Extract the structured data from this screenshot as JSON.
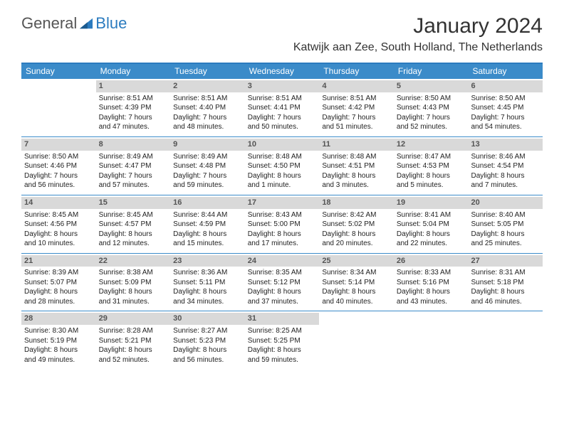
{
  "logo": {
    "text1": "General",
    "text2": "Blue"
  },
  "title": "January 2024",
  "location": "Katwijk aan Zee, South Holland, The Netherlands",
  "colors": {
    "header_bg": "#3b8bc9",
    "border": "#2b7bbf",
    "daynum_bg": "#d9d9d9",
    "text": "#222222"
  },
  "weekdays": [
    "Sunday",
    "Monday",
    "Tuesday",
    "Wednesday",
    "Thursday",
    "Friday",
    "Saturday"
  ],
  "weeks": [
    [
      {
        "num": "",
        "sunrise": "",
        "sunset": "",
        "daylight1": "",
        "daylight2": ""
      },
      {
        "num": "1",
        "sunrise": "Sunrise: 8:51 AM",
        "sunset": "Sunset: 4:39 PM",
        "daylight1": "Daylight: 7 hours",
        "daylight2": "and 47 minutes."
      },
      {
        "num": "2",
        "sunrise": "Sunrise: 8:51 AM",
        "sunset": "Sunset: 4:40 PM",
        "daylight1": "Daylight: 7 hours",
        "daylight2": "and 48 minutes."
      },
      {
        "num": "3",
        "sunrise": "Sunrise: 8:51 AM",
        "sunset": "Sunset: 4:41 PM",
        "daylight1": "Daylight: 7 hours",
        "daylight2": "and 50 minutes."
      },
      {
        "num": "4",
        "sunrise": "Sunrise: 8:51 AM",
        "sunset": "Sunset: 4:42 PM",
        "daylight1": "Daylight: 7 hours",
        "daylight2": "and 51 minutes."
      },
      {
        "num": "5",
        "sunrise": "Sunrise: 8:50 AM",
        "sunset": "Sunset: 4:43 PM",
        "daylight1": "Daylight: 7 hours",
        "daylight2": "and 52 minutes."
      },
      {
        "num": "6",
        "sunrise": "Sunrise: 8:50 AM",
        "sunset": "Sunset: 4:45 PM",
        "daylight1": "Daylight: 7 hours",
        "daylight2": "and 54 minutes."
      }
    ],
    [
      {
        "num": "7",
        "sunrise": "Sunrise: 8:50 AM",
        "sunset": "Sunset: 4:46 PM",
        "daylight1": "Daylight: 7 hours",
        "daylight2": "and 56 minutes."
      },
      {
        "num": "8",
        "sunrise": "Sunrise: 8:49 AM",
        "sunset": "Sunset: 4:47 PM",
        "daylight1": "Daylight: 7 hours",
        "daylight2": "and 57 minutes."
      },
      {
        "num": "9",
        "sunrise": "Sunrise: 8:49 AM",
        "sunset": "Sunset: 4:48 PM",
        "daylight1": "Daylight: 7 hours",
        "daylight2": "and 59 minutes."
      },
      {
        "num": "10",
        "sunrise": "Sunrise: 8:48 AM",
        "sunset": "Sunset: 4:50 PM",
        "daylight1": "Daylight: 8 hours",
        "daylight2": "and 1 minute."
      },
      {
        "num": "11",
        "sunrise": "Sunrise: 8:48 AM",
        "sunset": "Sunset: 4:51 PM",
        "daylight1": "Daylight: 8 hours",
        "daylight2": "and 3 minutes."
      },
      {
        "num": "12",
        "sunrise": "Sunrise: 8:47 AM",
        "sunset": "Sunset: 4:53 PM",
        "daylight1": "Daylight: 8 hours",
        "daylight2": "and 5 minutes."
      },
      {
        "num": "13",
        "sunrise": "Sunrise: 8:46 AM",
        "sunset": "Sunset: 4:54 PM",
        "daylight1": "Daylight: 8 hours",
        "daylight2": "and 7 minutes."
      }
    ],
    [
      {
        "num": "14",
        "sunrise": "Sunrise: 8:45 AM",
        "sunset": "Sunset: 4:56 PM",
        "daylight1": "Daylight: 8 hours",
        "daylight2": "and 10 minutes."
      },
      {
        "num": "15",
        "sunrise": "Sunrise: 8:45 AM",
        "sunset": "Sunset: 4:57 PM",
        "daylight1": "Daylight: 8 hours",
        "daylight2": "and 12 minutes."
      },
      {
        "num": "16",
        "sunrise": "Sunrise: 8:44 AM",
        "sunset": "Sunset: 4:59 PM",
        "daylight1": "Daylight: 8 hours",
        "daylight2": "and 15 minutes."
      },
      {
        "num": "17",
        "sunrise": "Sunrise: 8:43 AM",
        "sunset": "Sunset: 5:00 PM",
        "daylight1": "Daylight: 8 hours",
        "daylight2": "and 17 minutes."
      },
      {
        "num": "18",
        "sunrise": "Sunrise: 8:42 AM",
        "sunset": "Sunset: 5:02 PM",
        "daylight1": "Daylight: 8 hours",
        "daylight2": "and 20 minutes."
      },
      {
        "num": "19",
        "sunrise": "Sunrise: 8:41 AM",
        "sunset": "Sunset: 5:04 PM",
        "daylight1": "Daylight: 8 hours",
        "daylight2": "and 22 minutes."
      },
      {
        "num": "20",
        "sunrise": "Sunrise: 8:40 AM",
        "sunset": "Sunset: 5:05 PM",
        "daylight1": "Daylight: 8 hours",
        "daylight2": "and 25 minutes."
      }
    ],
    [
      {
        "num": "21",
        "sunrise": "Sunrise: 8:39 AM",
        "sunset": "Sunset: 5:07 PM",
        "daylight1": "Daylight: 8 hours",
        "daylight2": "and 28 minutes."
      },
      {
        "num": "22",
        "sunrise": "Sunrise: 8:38 AM",
        "sunset": "Sunset: 5:09 PM",
        "daylight1": "Daylight: 8 hours",
        "daylight2": "and 31 minutes."
      },
      {
        "num": "23",
        "sunrise": "Sunrise: 8:36 AM",
        "sunset": "Sunset: 5:11 PM",
        "daylight1": "Daylight: 8 hours",
        "daylight2": "and 34 minutes."
      },
      {
        "num": "24",
        "sunrise": "Sunrise: 8:35 AM",
        "sunset": "Sunset: 5:12 PM",
        "daylight1": "Daylight: 8 hours",
        "daylight2": "and 37 minutes."
      },
      {
        "num": "25",
        "sunrise": "Sunrise: 8:34 AM",
        "sunset": "Sunset: 5:14 PM",
        "daylight1": "Daylight: 8 hours",
        "daylight2": "and 40 minutes."
      },
      {
        "num": "26",
        "sunrise": "Sunrise: 8:33 AM",
        "sunset": "Sunset: 5:16 PM",
        "daylight1": "Daylight: 8 hours",
        "daylight2": "and 43 minutes."
      },
      {
        "num": "27",
        "sunrise": "Sunrise: 8:31 AM",
        "sunset": "Sunset: 5:18 PM",
        "daylight1": "Daylight: 8 hours",
        "daylight2": "and 46 minutes."
      }
    ],
    [
      {
        "num": "28",
        "sunrise": "Sunrise: 8:30 AM",
        "sunset": "Sunset: 5:19 PM",
        "daylight1": "Daylight: 8 hours",
        "daylight2": "and 49 minutes."
      },
      {
        "num": "29",
        "sunrise": "Sunrise: 8:28 AM",
        "sunset": "Sunset: 5:21 PM",
        "daylight1": "Daylight: 8 hours",
        "daylight2": "and 52 minutes."
      },
      {
        "num": "30",
        "sunrise": "Sunrise: 8:27 AM",
        "sunset": "Sunset: 5:23 PM",
        "daylight1": "Daylight: 8 hours",
        "daylight2": "and 56 minutes."
      },
      {
        "num": "31",
        "sunrise": "Sunrise: 8:25 AM",
        "sunset": "Sunset: 5:25 PM",
        "daylight1": "Daylight: 8 hours",
        "daylight2": "and 59 minutes."
      },
      {
        "num": "",
        "sunrise": "",
        "sunset": "",
        "daylight1": "",
        "daylight2": ""
      },
      {
        "num": "",
        "sunrise": "",
        "sunset": "",
        "daylight1": "",
        "daylight2": ""
      },
      {
        "num": "",
        "sunrise": "",
        "sunset": "",
        "daylight1": "",
        "daylight2": ""
      }
    ]
  ]
}
